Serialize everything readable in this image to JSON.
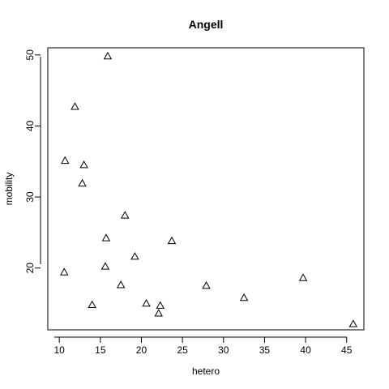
{
  "chart_data": {
    "type": "scatter",
    "title": "Angell",
    "xlabel": "hetero",
    "ylabel": "mobility",
    "xlim": [
      8.6,
      47.1
    ],
    "ylim": [
      11.3,
      51.0
    ],
    "xticks": [
      10,
      15,
      20,
      25,
      30,
      35,
      40,
      45
    ],
    "yticks": [
      20,
      30,
      40,
      50
    ],
    "marker": "open-triangle",
    "grid": false,
    "legend": "none",
    "points": [
      {
        "x": 15.9,
        "y": 49.8
      },
      {
        "x": 11.9,
        "y": 42.7
      },
      {
        "x": 10.7,
        "y": 35.1
      },
      {
        "x": 13.0,
        "y": 34.5
      },
      {
        "x": 12.8,
        "y": 31.9
      },
      {
        "x": 18.0,
        "y": 27.4
      },
      {
        "x": 15.7,
        "y": 24.2
      },
      {
        "x": 23.7,
        "y": 23.8
      },
      {
        "x": 19.2,
        "y": 21.6
      },
      {
        "x": 15.6,
        "y": 20.2
      },
      {
        "x": 10.6,
        "y": 19.4
      },
      {
        "x": 39.7,
        "y": 18.6
      },
      {
        "x": 17.5,
        "y": 17.6
      },
      {
        "x": 27.9,
        "y": 17.5
      },
      {
        "x": 32.5,
        "y": 15.8
      },
      {
        "x": 14.0,
        "y": 14.8
      },
      {
        "x": 20.6,
        "y": 15.0
      },
      {
        "x": 22.3,
        "y": 14.7
      },
      {
        "x": 22.1,
        "y": 13.6
      },
      {
        "x": 45.8,
        "y": 12.1
      }
    ]
  }
}
